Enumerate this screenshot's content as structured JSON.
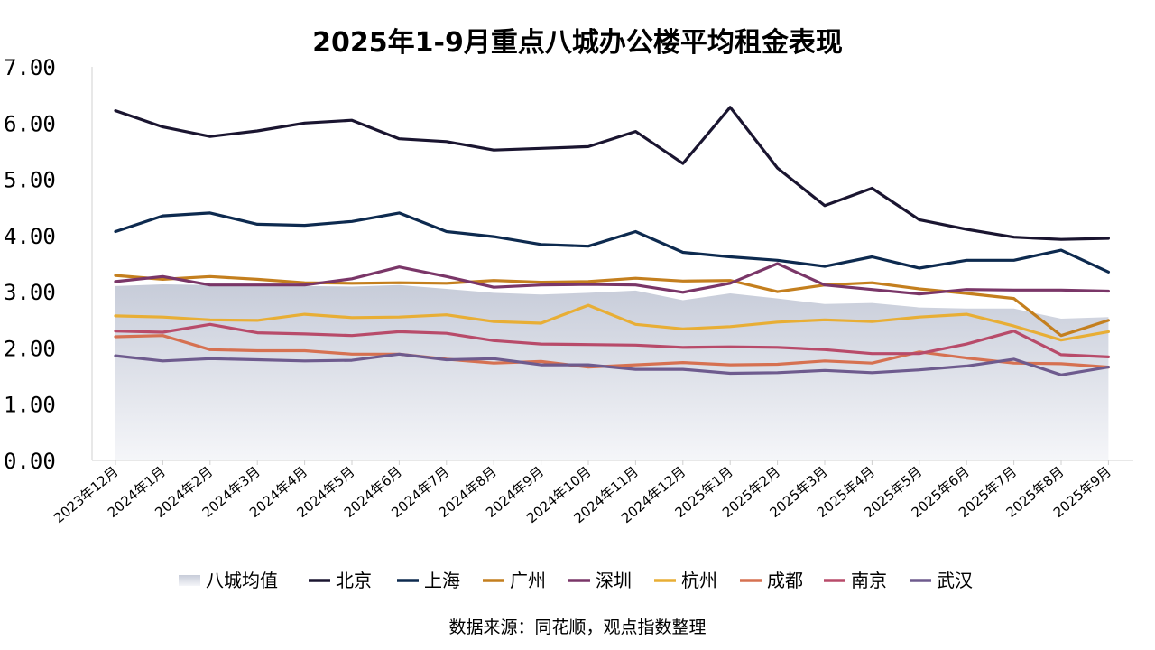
{
  "chart_data": {
    "type": "line",
    "title": "2025年1-9月重点八城办公楼平均租金表现",
    "source": "数据来源：同花顺，观点指数整理",
    "ylim": [
      0,
      7
    ],
    "yticks": [
      "0.00",
      "1.00",
      "2.00",
      "3.00",
      "4.00",
      "5.00",
      "6.00",
      "7.00"
    ],
    "yticks_values": [
      0,
      1,
      2,
      3,
      4,
      5,
      6,
      7
    ],
    "grid": false,
    "legend_position": "bottom",
    "categories": [
      "2023年12月",
      "2024年1月",
      "2024年2月",
      "2024年3月",
      "2024年4月",
      "2024年5月",
      "2024年6月",
      "2024年7月",
      "2024年8月",
      "2024年9月",
      "2024年10月",
      "2024年11月",
      "2024年12月",
      "2025年1月",
      "2025年2月",
      "2025年3月",
      "2025年4月",
      "2025年5月",
      "2025年6月",
      "2025年7月",
      "2025年8月",
      "2025年9月"
    ],
    "series": [
      {
        "name": "八城均值",
        "kind": "area",
        "color": "#cdd2de",
        "values": [
          3.1,
          3.13,
          3.12,
          3.11,
          3.1,
          3.09,
          3.12,
          3.05,
          2.98,
          2.95,
          2.98,
          3.02,
          2.85,
          2.97,
          2.88,
          2.78,
          2.8,
          2.72,
          2.7,
          2.7,
          2.52,
          2.55
        ]
      },
      {
        "name": "北京",
        "kind": "line",
        "color": "#1a1530",
        "values": [
          6.22,
          5.93,
          5.76,
          5.86,
          6.0,
          6.05,
          5.72,
          5.67,
          5.52,
          5.55,
          5.58,
          5.85,
          5.28,
          6.28,
          5.2,
          4.53,
          4.84,
          4.28,
          4.11,
          3.97,
          3.93,
          3.95
        ]
      },
      {
        "name": "上海",
        "kind": "line",
        "color": "#0d2a4f",
        "values": [
          4.07,
          4.35,
          4.4,
          4.2,
          4.18,
          4.25,
          4.4,
          4.07,
          3.98,
          3.84,
          3.81,
          4.07,
          3.7,
          3.62,
          3.56,
          3.45,
          3.62,
          3.42,
          3.56,
          3.56,
          3.74,
          3.35
        ]
      },
      {
        "name": "广州",
        "kind": "line",
        "color": "#c47f1e",
        "values": [
          3.29,
          3.22,
          3.27,
          3.22,
          3.16,
          3.15,
          3.16,
          3.15,
          3.2,
          3.17,
          3.18,
          3.24,
          3.19,
          3.2,
          3.0,
          3.12,
          3.16,
          3.05,
          2.97,
          2.88,
          2.22,
          2.49
        ]
      },
      {
        "name": "深圳",
        "kind": "line",
        "color": "#7a3668",
        "values": [
          3.18,
          3.27,
          3.12,
          3.12,
          3.12,
          3.23,
          3.44,
          3.27,
          3.08,
          3.12,
          3.13,
          3.12,
          2.99,
          3.15,
          3.5,
          3.12,
          3.04,
          2.96,
          3.04,
          3.03,
          3.03,
          3.01
        ]
      },
      {
        "name": "杭州",
        "kind": "line",
        "color": "#e8ae35",
        "values": [
          2.57,
          2.55,
          2.5,
          2.49,
          2.6,
          2.54,
          2.55,
          2.59,
          2.47,
          2.44,
          2.76,
          2.42,
          2.34,
          2.38,
          2.46,
          2.5,
          2.47,
          2.55,
          2.6,
          2.39,
          2.14,
          2.29
        ]
      },
      {
        "name": "成都",
        "kind": "line",
        "color": "#d67151",
        "values": [
          2.2,
          2.22,
          1.97,
          1.95,
          1.95,
          1.89,
          1.89,
          1.8,
          1.73,
          1.76,
          1.66,
          1.7,
          1.74,
          1.7,
          1.71,
          1.77,
          1.73,
          1.93,
          1.82,
          1.73,
          1.72,
          1.66
        ]
      },
      {
        "name": "南京",
        "kind": "line",
        "color": "#b84b6a",
        "values": [
          2.3,
          2.28,
          2.42,
          2.27,
          2.25,
          2.22,
          2.29,
          2.26,
          2.13,
          2.07,
          2.06,
          2.05,
          2.01,
          2.02,
          2.01,
          1.97,
          1.9,
          1.9,
          2.07,
          2.3,
          1.88,
          1.84
        ]
      },
      {
        "name": "武汉",
        "kind": "line",
        "color": "#6e5b8e",
        "values": [
          1.86,
          1.77,
          1.81,
          1.79,
          1.77,
          1.78,
          1.89,
          1.79,
          1.81,
          1.7,
          1.7,
          1.62,
          1.62,
          1.55,
          1.56,
          1.6,
          1.56,
          1.61,
          1.68,
          1.8,
          1.52,
          1.66
        ]
      }
    ]
  }
}
